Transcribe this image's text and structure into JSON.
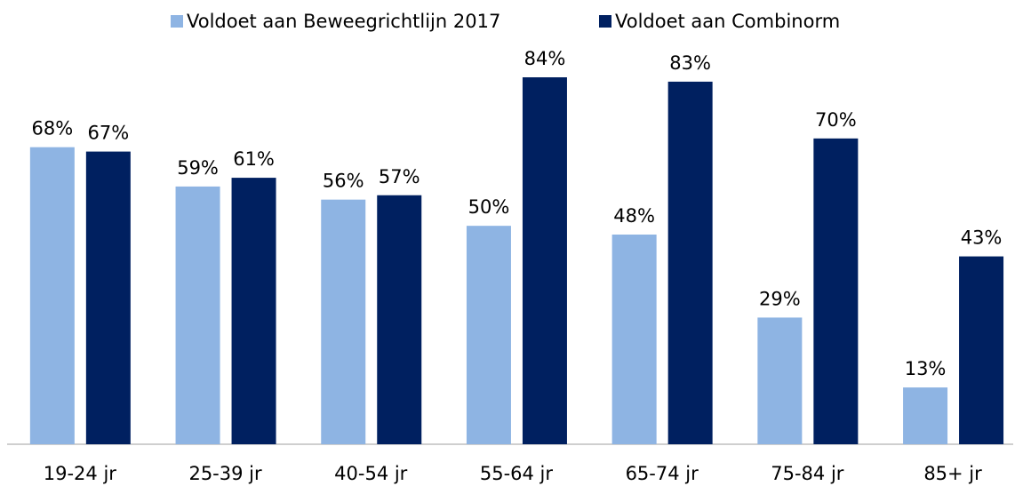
{
  "chart_data": {
    "type": "bar",
    "categories": [
      "19-24 jr",
      "25-39 jr",
      "40-54 jr",
      "55-64 jr",
      "65-74 jr",
      "75-84 jr",
      "85+ jr"
    ],
    "series": [
      {
        "name": "Voldoet aan Beweegrichtlijn 2017",
        "color": "#8eb4e3",
        "values": [
          68,
          59,
          56,
          50,
          48,
          29,
          13
        ],
        "value_labels": [
          "68%",
          "59%",
          "56%",
          "50%",
          "48%",
          "29%",
          "13%"
        ]
      },
      {
        "name": "Voldoet aan Combinorm",
        "color": "#002060",
        "values": [
          67,
          61,
          57,
          84,
          83,
          70,
          43
        ],
        "value_labels": [
          "67%",
          "61%",
          "57%",
          "84%",
          "83%",
          "70%",
          "43%"
        ]
      }
    ],
    "ylim": [
      0,
      90
    ],
    "legend": "top"
  }
}
